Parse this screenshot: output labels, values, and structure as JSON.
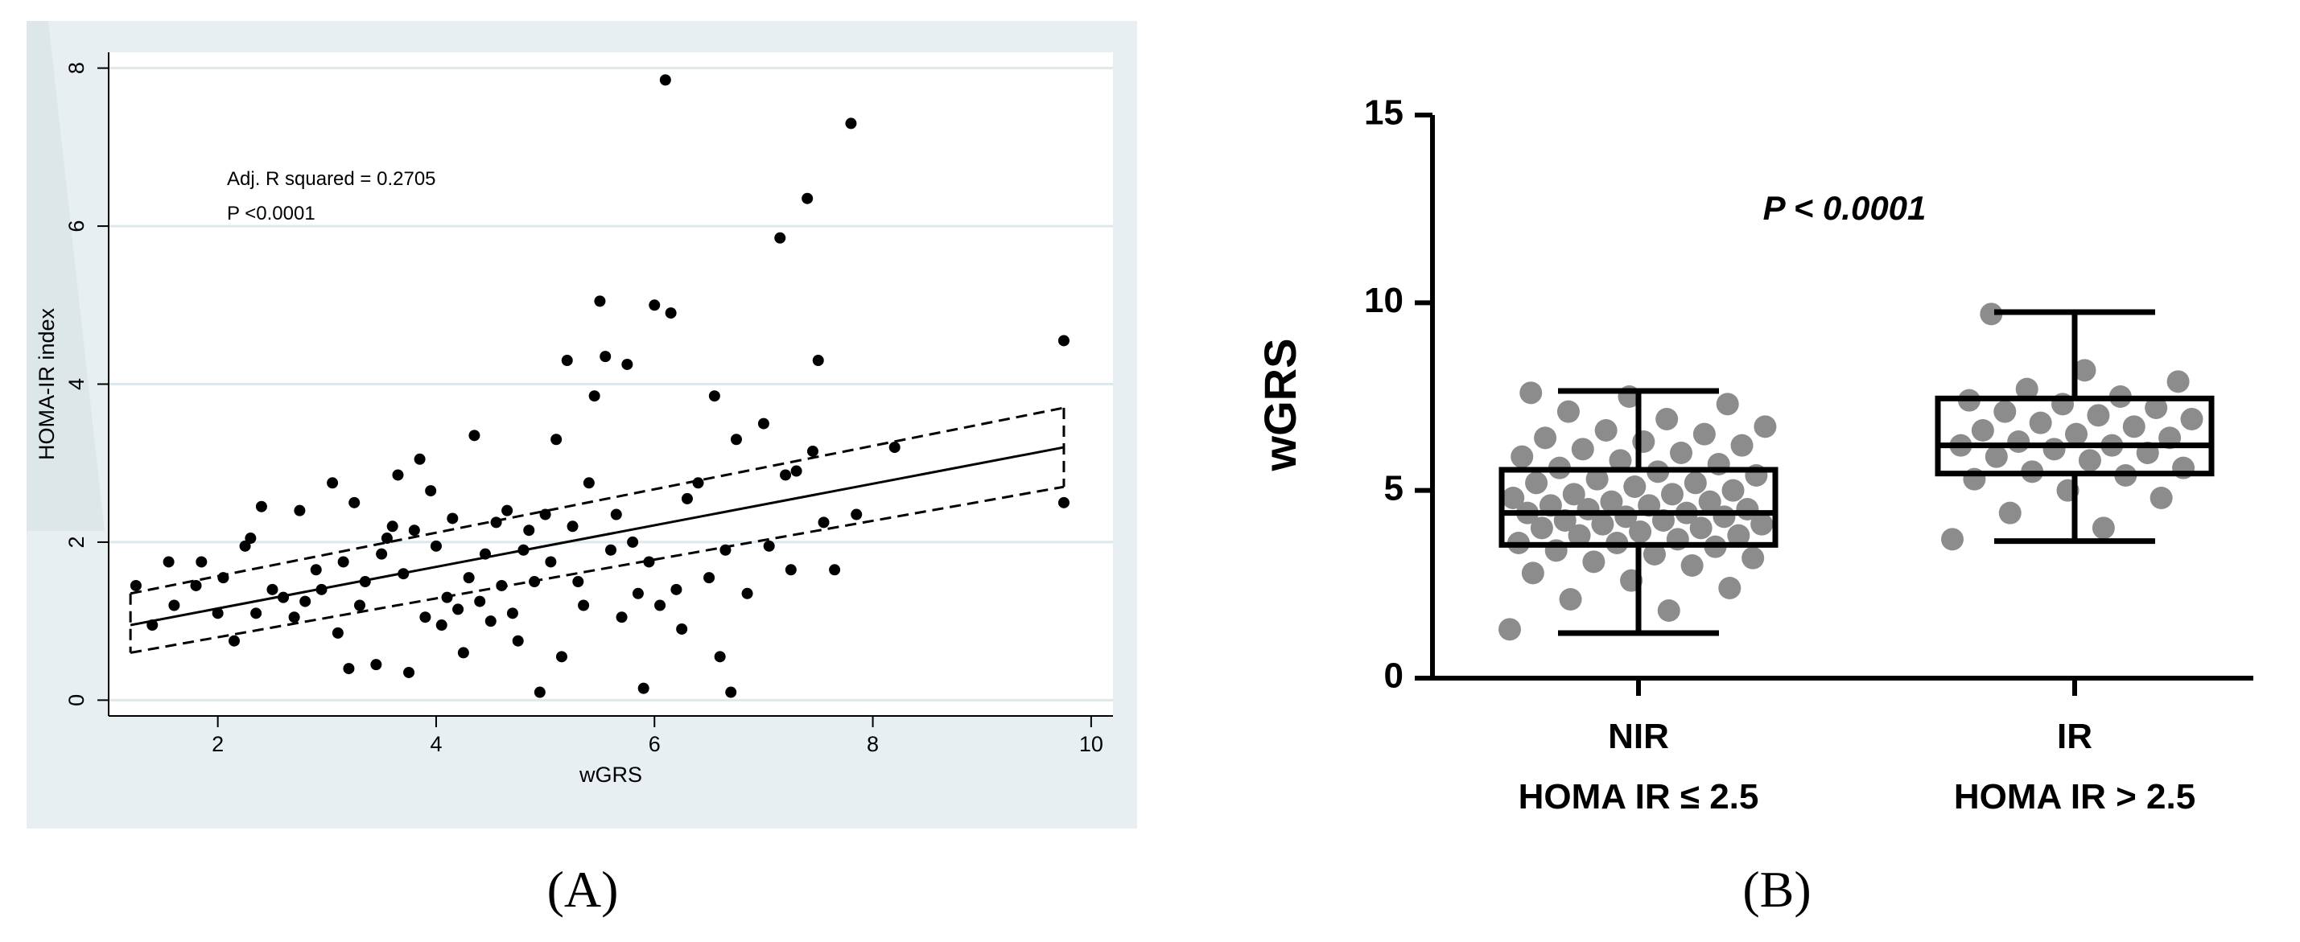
{
  "chart_data": [
    {
      "type": "scatter",
      "panel_label": "(A)",
      "xlabel": "wGRS",
      "ylabel": "HOMA-IR index",
      "xlim": [
        1.0,
        10.2
      ],
      "ylim": [
        -0.2,
        8.2
      ],
      "xticks": [
        2,
        4,
        6,
        8,
        10
      ],
      "yticks": [
        0,
        2,
        4,
        6,
        8
      ],
      "grid": true,
      "annotations": [
        "Adj. R squared = 0.2705",
        "P <0.0001"
      ],
      "regression": {
        "x": [
          1.2,
          9.75
        ],
        "y": [
          0.95,
          3.2
        ]
      },
      "ci_upper": {
        "x": [
          1.2,
          9.75
        ],
        "y": [
          1.35,
          3.7
        ]
      },
      "ci_lower": {
        "x": [
          1.2,
          9.75
        ],
        "y": [
          0.6,
          2.7
        ]
      },
      "points": [
        [
          1.25,
          1.45
        ],
        [
          1.4,
          0.95
        ],
        [
          1.55,
          1.75
        ],
        [
          1.6,
          1.2
        ],
        [
          1.8,
          1.45
        ],
        [
          1.85,
          1.75
        ],
        [
          2.0,
          1.1
        ],
        [
          2.05,
          1.55
        ],
        [
          2.15,
          0.75
        ],
        [
          2.25,
          1.95
        ],
        [
          2.3,
          2.05
        ],
        [
          2.35,
          1.1
        ],
        [
          2.4,
          2.45
        ],
        [
          2.5,
          1.4
        ],
        [
          2.6,
          1.3
        ],
        [
          2.7,
          1.05
        ],
        [
          2.75,
          2.4
        ],
        [
          2.8,
          1.25
        ],
        [
          2.9,
          1.65
        ],
        [
          2.95,
          1.4
        ],
        [
          3.05,
          2.75
        ],
        [
          3.1,
          0.85
        ],
        [
          3.15,
          1.75
        ],
        [
          3.2,
          0.4
        ],
        [
          3.25,
          2.5
        ],
        [
          3.3,
          1.2
        ],
        [
          3.35,
          1.5
        ],
        [
          3.45,
          0.45
        ],
        [
          3.5,
          1.85
        ],
        [
          3.55,
          2.05
        ],
        [
          3.6,
          2.2
        ],
        [
          3.65,
          2.85
        ],
        [
          3.7,
          1.6
        ],
        [
          3.75,
          0.35
        ],
        [
          3.8,
          2.15
        ],
        [
          3.85,
          3.05
        ],
        [
          3.9,
          1.05
        ],
        [
          3.95,
          2.65
        ],
        [
          4.0,
          1.95
        ],
        [
          4.05,
          0.95
        ],
        [
          4.1,
          1.3
        ],
        [
          4.15,
          2.3
        ],
        [
          4.2,
          1.15
        ],
        [
          4.25,
          0.6
        ],
        [
          4.3,
          1.55
        ],
        [
          4.35,
          3.35
        ],
        [
          4.4,
          1.25
        ],
        [
          4.45,
          1.85
        ],
        [
          4.5,
          1.0
        ],
        [
          4.55,
          2.25
        ],
        [
          4.6,
          1.45
        ],
        [
          4.65,
          2.4
        ],
        [
          4.7,
          1.1
        ],
        [
          4.75,
          0.75
        ],
        [
          4.8,
          1.9
        ],
        [
          4.85,
          2.15
        ],
        [
          4.9,
          1.5
        ],
        [
          4.95,
          0.1
        ],
        [
          5.0,
          2.35
        ],
        [
          5.05,
          1.75
        ],
        [
          5.1,
          3.3
        ],
        [
          5.15,
          0.55
        ],
        [
          5.2,
          4.3
        ],
        [
          5.25,
          2.2
        ],
        [
          5.3,
          1.5
        ],
        [
          5.35,
          1.2
        ],
        [
          5.4,
          2.75
        ],
        [
          5.45,
          3.85
        ],
        [
          5.5,
          5.05
        ],
        [
          5.55,
          4.35
        ],
        [
          5.6,
          1.9
        ],
        [
          5.65,
          2.35
        ],
        [
          5.7,
          1.05
        ],
        [
          5.75,
          4.25
        ],
        [
          5.8,
          2.0
        ],
        [
          5.85,
          1.35
        ],
        [
          5.9,
          0.15
        ],
        [
          5.95,
          1.75
        ],
        [
          6.0,
          5.0
        ],
        [
          6.05,
          1.2
        ],
        [
          6.1,
          7.85
        ],
        [
          6.15,
          4.9
        ],
        [
          6.2,
          1.4
        ],
        [
          6.25,
          0.9
        ],
        [
          6.3,
          2.55
        ],
        [
          6.4,
          2.75
        ],
        [
          6.5,
          1.55
        ],
        [
          6.55,
          3.85
        ],
        [
          6.6,
          0.55
        ],
        [
          6.65,
          1.9
        ],
        [
          6.7,
          0.1
        ],
        [
          6.75,
          3.3
        ],
        [
          6.85,
          1.35
        ],
        [
          7.0,
          3.5
        ],
        [
          7.05,
          1.95
        ],
        [
          7.15,
          5.85
        ],
        [
          7.2,
          2.85
        ],
        [
          7.25,
          1.65
        ],
        [
          7.3,
          2.9
        ],
        [
          7.4,
          6.35
        ],
        [
          7.45,
          3.15
        ],
        [
          7.5,
          4.3
        ],
        [
          7.55,
          2.25
        ],
        [
          7.65,
          1.65
        ],
        [
          7.8,
          7.3
        ],
        [
          7.85,
          2.35
        ],
        [
          8.2,
          3.2
        ],
        [
          9.75,
          4.55
        ],
        [
          9.75,
          2.5
        ]
      ]
    },
    {
      "type": "box",
      "panel_label": "(B)",
      "ylabel": "wGRS",
      "ylim": [
        0,
        15
      ],
      "yticks": [
        0,
        5,
        10,
        15
      ],
      "annotation": "P < 0.0001",
      "groups": [
        {
          "label_line1": "NIR",
          "label_line2": "HOMA IR ≤ 2.5",
          "min": 1.2,
          "q1": 3.55,
          "median": 4.4,
          "q3": 5.55,
          "max": 7.65,
          "points": [
            1.3,
            1.8,
            2.1,
            2.4,
            2.6,
            2.8,
            3.0,
            3.1,
            3.2,
            3.3,
            3.4,
            3.5,
            3.6,
            3.6,
            3.7,
            3.8,
            3.8,
            3.9,
            4.0,
            4.0,
            4.1,
            4.1,
            4.2,
            4.2,
            4.3,
            4.3,
            4.4,
            4.4,
            4.5,
            4.5,
            4.6,
            4.6,
            4.7,
            4.7,
            4.8,
            4.9,
            4.9,
            5.0,
            5.1,
            5.2,
            5.2,
            5.3,
            5.4,
            5.5,
            5.6,
            5.7,
            5.8,
            5.9,
            6.0,
            6.1,
            6.2,
            6.3,
            6.4,
            6.5,
            6.6,
            6.7,
            6.9,
            7.1,
            7.3,
            7.5,
            7.6
          ]
        },
        {
          "label_line1": "IR",
          "label_line2": "HOMA IR > 2.5",
          "min": 3.65,
          "q1": 5.45,
          "median": 6.2,
          "q3": 7.45,
          "max": 9.75,
          "points": [
            3.7,
            4.0,
            4.4,
            4.8,
            5.0,
            5.3,
            5.4,
            5.5,
            5.6,
            5.8,
            5.9,
            6.0,
            6.1,
            6.2,
            6.2,
            6.3,
            6.4,
            6.5,
            6.6,
            6.7,
            6.8,
            6.9,
            7.0,
            7.1,
            7.2,
            7.3,
            7.4,
            7.5,
            7.7,
            7.9,
            8.2,
            9.7
          ]
        }
      ]
    }
  ]
}
